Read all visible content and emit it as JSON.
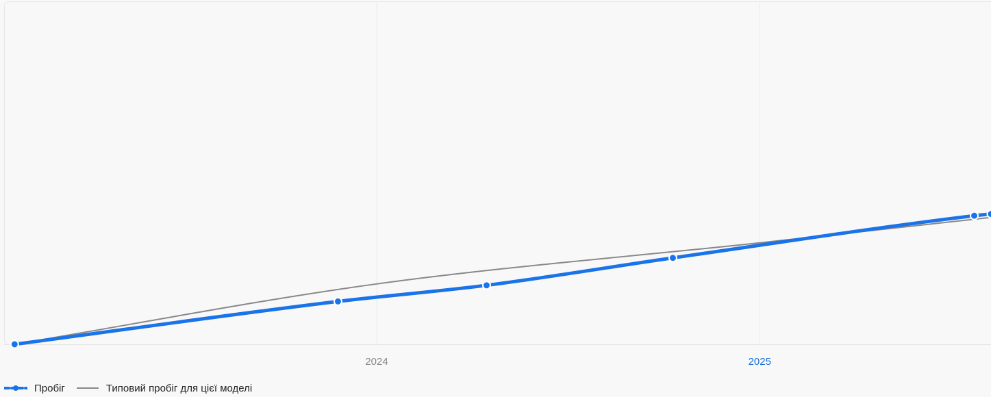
{
  "chart_data": {
    "type": "line",
    "x_axis": {
      "type": "date",
      "range": [
        "2023-01-10",
        "2025-08-10"
      ],
      "ticks": [
        {
          "value": "2024-01-01",
          "label": "2024",
          "color": "#888888"
        },
        {
          "value": "2025-01-01",
          "label": "2025",
          "color": "#1a6fd6"
        }
      ]
    },
    "y_axis": {
      "ylim": [
        0,
        100
      ],
      "tick_labels_shown": false
    },
    "grid": {
      "vertical": true,
      "horizontal": false
    },
    "legend_placement": "bottom-left",
    "series": [
      {
        "name": "Пробіг",
        "key": "mileage",
        "color": "#1a73e8",
        "smooth": true,
        "markers": true,
        "points": [
          {
            "x": "2023-01-20",
            "y": 0
          },
          {
            "x": "2023-11-25",
            "y": 12.5
          },
          {
            "x": "2024-04-15",
            "y": 17.2
          },
          {
            "x": "2024-10-10",
            "y": 25.2
          },
          {
            "x": "2025-07-25",
            "y": 37.5
          },
          {
            "x": "2025-08-10",
            "y": 38.0
          }
        ]
      },
      {
        "name": "Типовий пробіг для цієї моделі",
        "key": "typical",
        "color": "#888888",
        "smooth": true,
        "markers": false,
        "points": [
          {
            "x": "2023-01-20",
            "y": 0
          },
          {
            "x": "2024-01-01",
            "y": 17.6
          },
          {
            "x": "2025-01-01",
            "y": 29.6
          },
          {
            "x": "2025-08-10",
            "y": 37.0
          }
        ]
      }
    ]
  },
  "legend": {
    "items": [
      {
        "key": "mileage",
        "label": "Пробіг"
      },
      {
        "key": "typical",
        "label": "Типовий пробіг для цієї моделі"
      }
    ]
  }
}
